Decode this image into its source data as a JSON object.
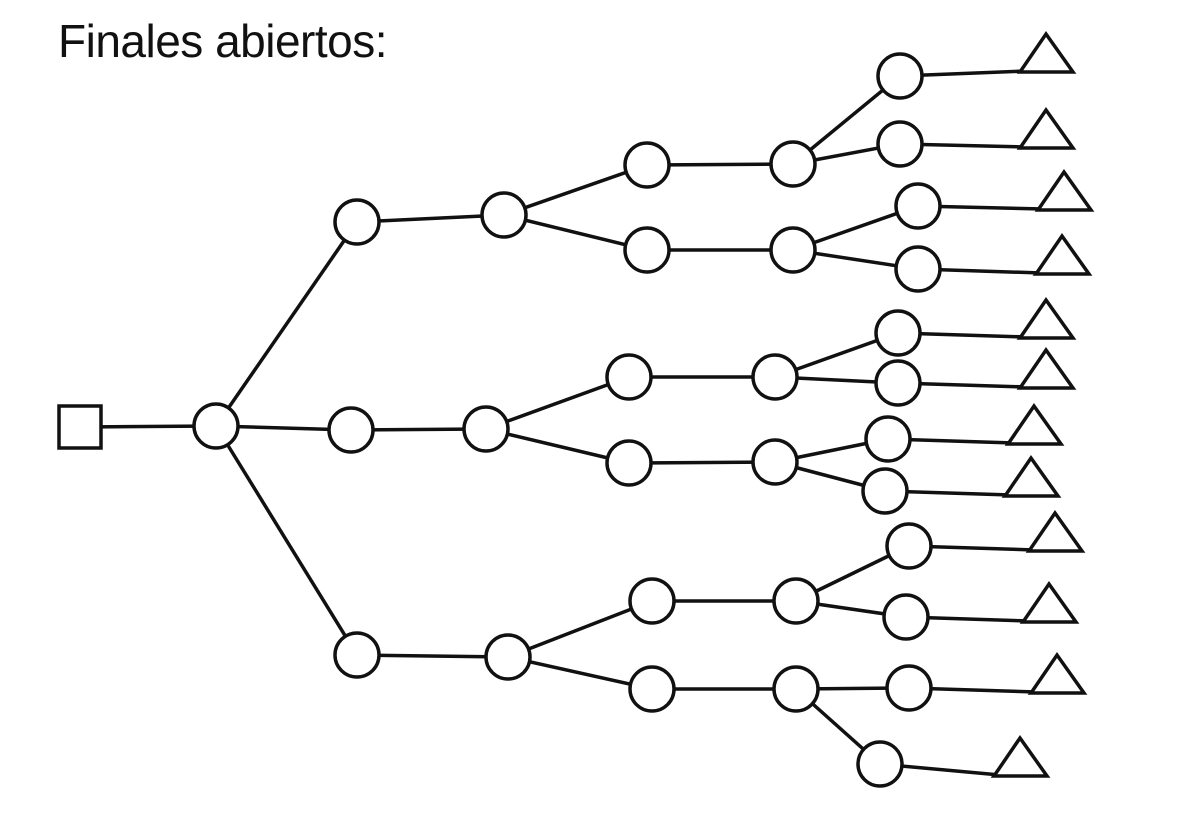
{
  "title": "Finales abiertos:",
  "colors": {
    "stroke": "#111111",
    "fill": "#ffffff"
  },
  "tree": {
    "start_node_shape": "square",
    "decision_node_shape": "circle",
    "end_node_shape": "triangle",
    "leaf_count": 12
  }
}
